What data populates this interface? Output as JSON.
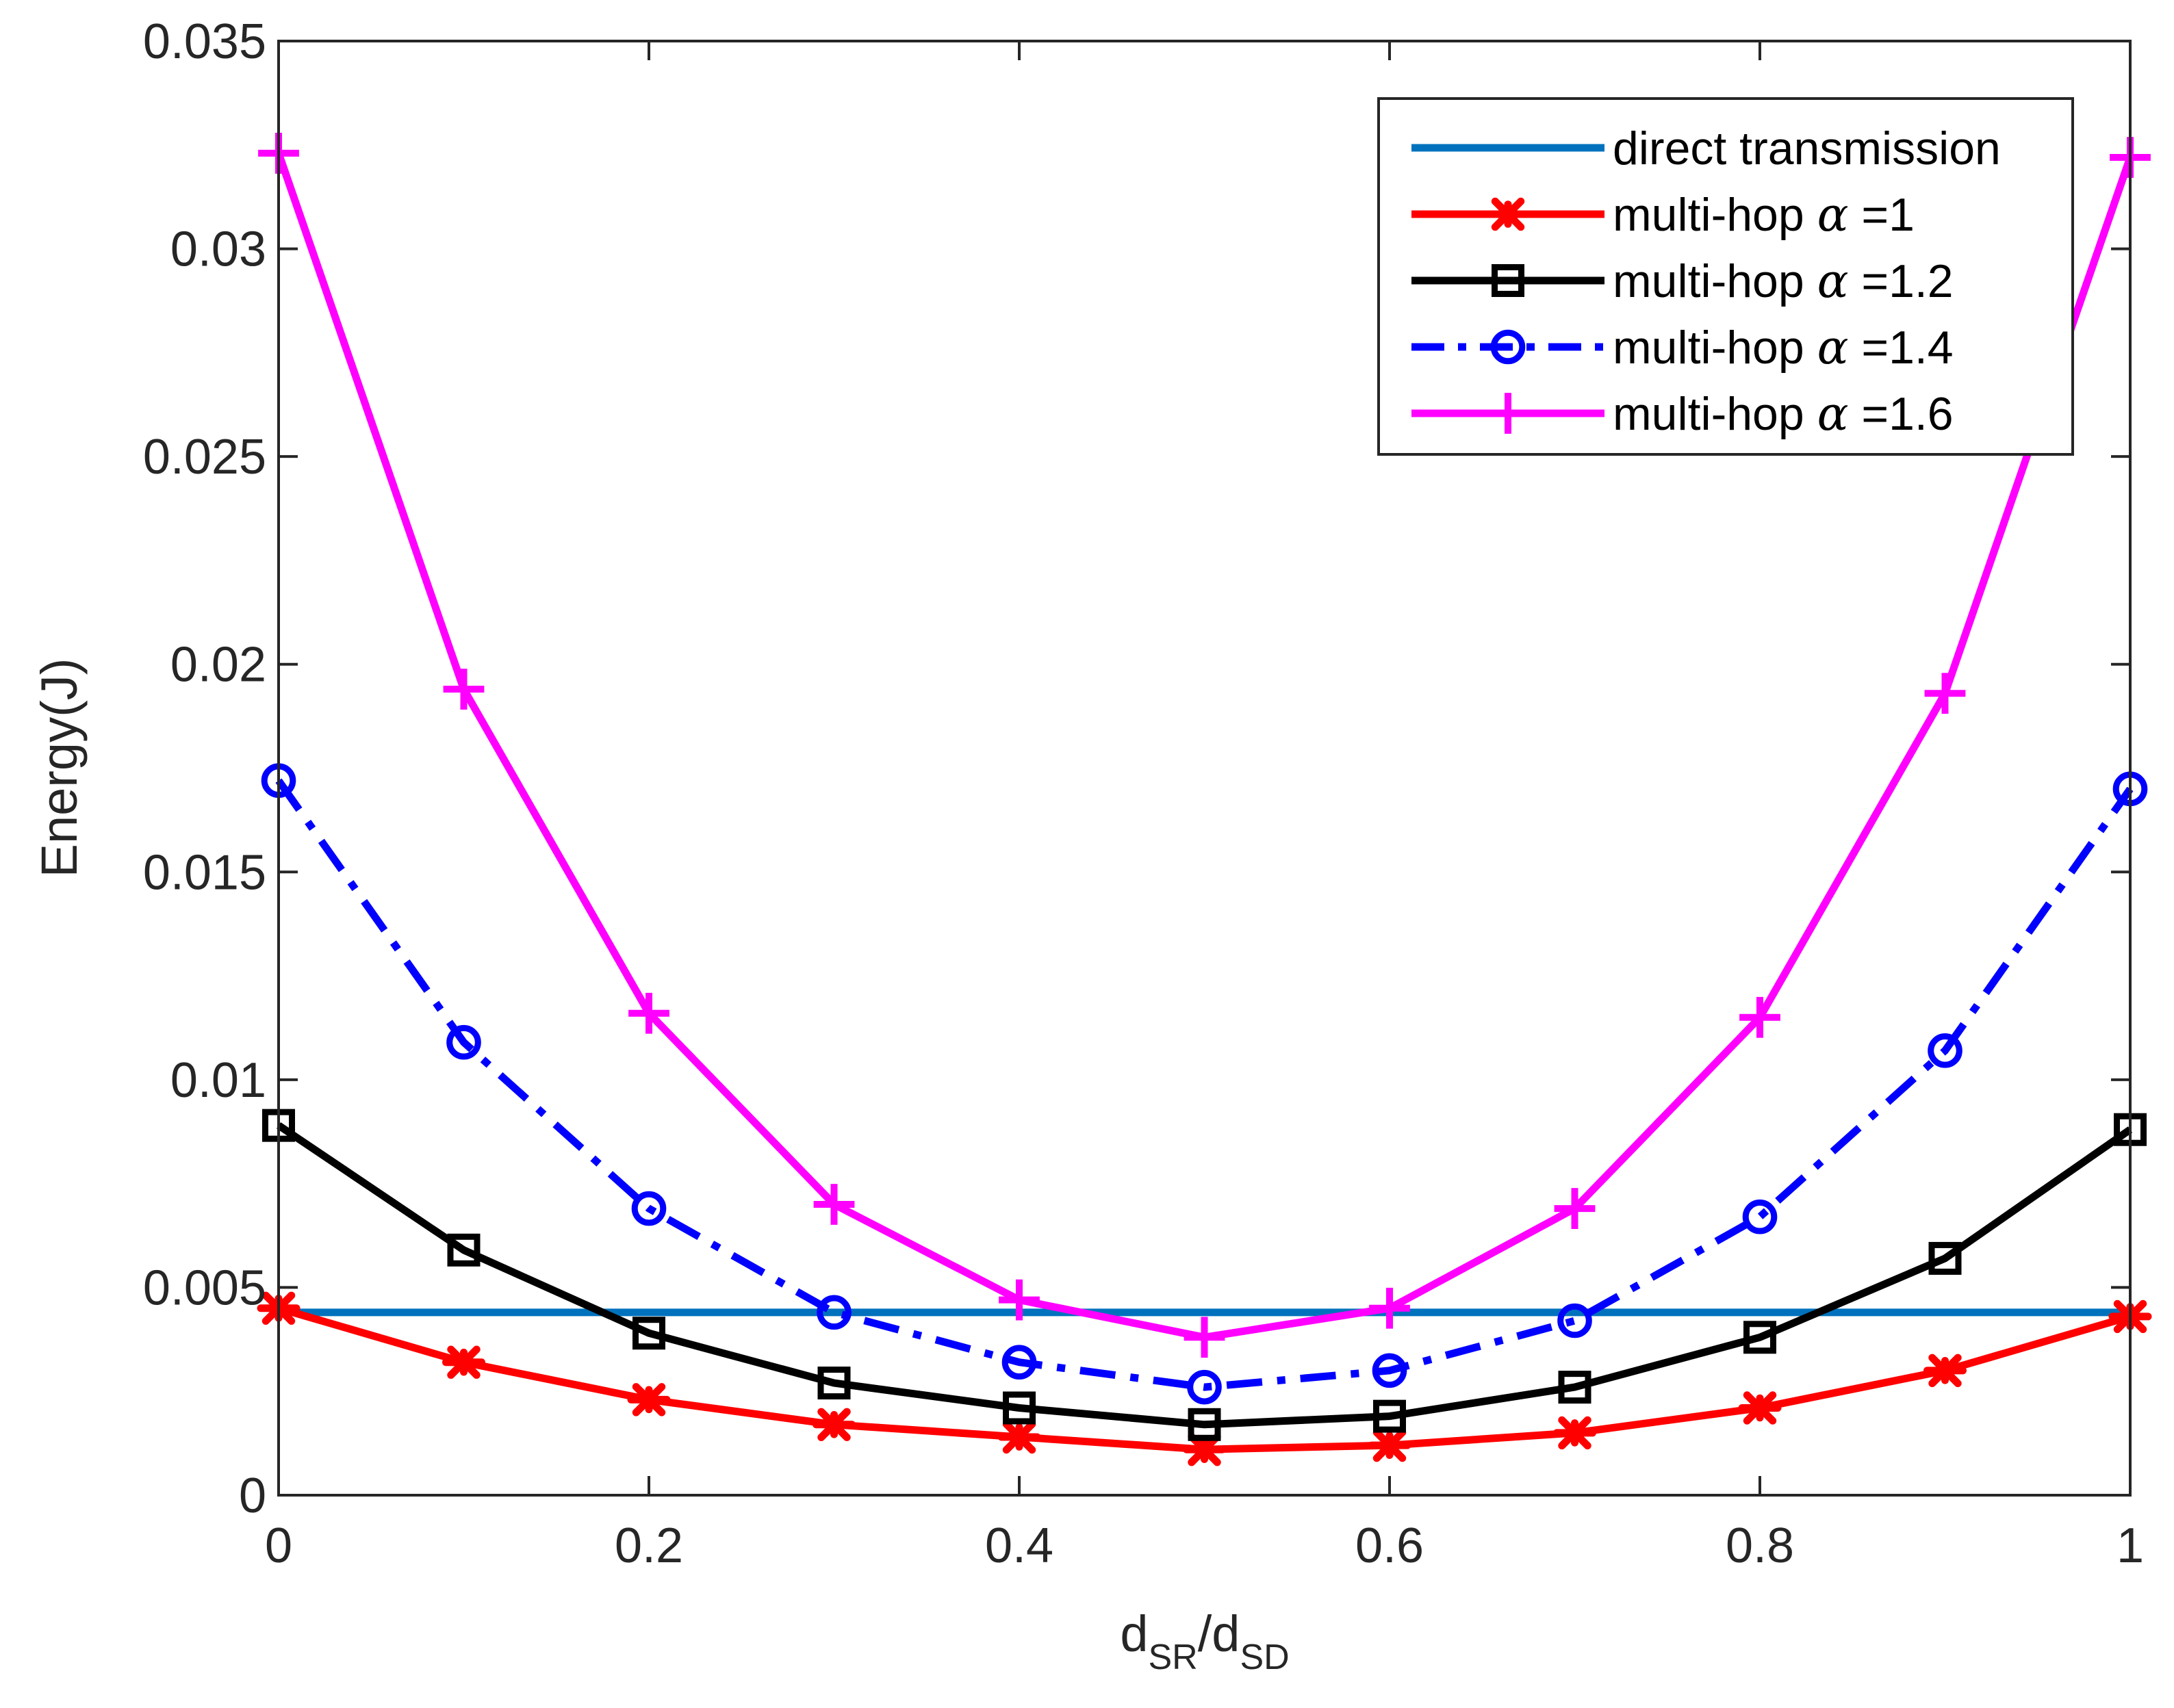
{
  "chart_data": {
    "type": "line",
    "title": "",
    "xlabel": {
      "main": "d",
      "sub1": "SR",
      "slash": "/d",
      "sub2": "SD"
    },
    "ylabel": "Energy(J)",
    "xlim": [
      0,
      1
    ],
    "ylim": [
      0,
      0.035
    ],
    "xticks": [
      0,
      0.2,
      0.4,
      0.6,
      0.8,
      1
    ],
    "xtick_labels": [
      "0",
      "0.2",
      "0.4",
      "0.6",
      "0.8",
      "1"
    ],
    "yticks": [
      0,
      0.005,
      0.01,
      0.015,
      0.02,
      0.025,
      0.03,
      0.035
    ],
    "ytick_labels": [
      "0",
      "0.005",
      "0.01",
      "0.015",
      "0.02",
      "0.025",
      "0.03",
      "0.035"
    ],
    "grid": false,
    "legend_position": "top-right",
    "x": [
      0,
      0.1,
      0.2,
      0.3,
      0.4,
      0.5,
      0.6,
      0.7,
      0.8,
      0.9,
      1
    ],
    "series": [
      {
        "name": "direct transmission",
        "label_prefix": "direct transmission",
        "symbol": "",
        "label_suffix": "",
        "color": "#0072BD",
        "marker": "none",
        "dash": "solid",
        "values": [
          0.0044,
          0.0044,
          0.0044,
          0.0044,
          0.0044,
          0.0044,
          0.0044,
          0.0044,
          0.0044,
          0.0044,
          0.0044
        ]
      },
      {
        "name": "multi-hop α =1",
        "label_prefix": "multi-hop ",
        "symbol": "α",
        "label_suffix": " =1",
        "color": "#FF0000",
        "marker": "asterisk",
        "dash": "solid",
        "values": [
          0.0045,
          0.0032,
          0.0023,
          0.0017,
          0.0014,
          0.0011,
          0.0012,
          0.0015,
          0.0021,
          0.003,
          0.0043
        ]
      },
      {
        "name": "multi-hop α =1.2",
        "label_prefix": "multi-hop ",
        "symbol": "α",
        "label_suffix": " =1.2",
        "color": "#000000",
        "marker": "square",
        "dash": "solid",
        "values": [
          0.0089,
          0.0059,
          0.0039,
          0.0027,
          0.0021,
          0.0017,
          0.0019,
          0.0026,
          0.0038,
          0.0057,
          0.0088
        ]
      },
      {
        "name": "multi-hop α =1.4",
        "label_prefix": "multi-hop ",
        "symbol": "α",
        "label_suffix": " =1.4",
        "color": "#0000FF",
        "marker": "circle",
        "dash": "dashdot",
        "values": [
          0.0172,
          0.0109,
          0.0069,
          0.0044,
          0.0032,
          0.0026,
          0.003,
          0.0042,
          0.0067,
          0.0107,
          0.017
        ]
      },
      {
        "name": "multi-hop α =1.6",
        "label_prefix": "multi-hop ",
        "symbol": "α",
        "label_suffix": " =1.6",
        "color": "#FF00FF",
        "marker": "plus",
        "dash": "solid",
        "values": [
          0.0323,
          0.0194,
          0.0116,
          0.007,
          0.0047,
          0.0038,
          0.0045,
          0.0069,
          0.0115,
          0.0193,
          0.0322
        ]
      }
    ]
  }
}
